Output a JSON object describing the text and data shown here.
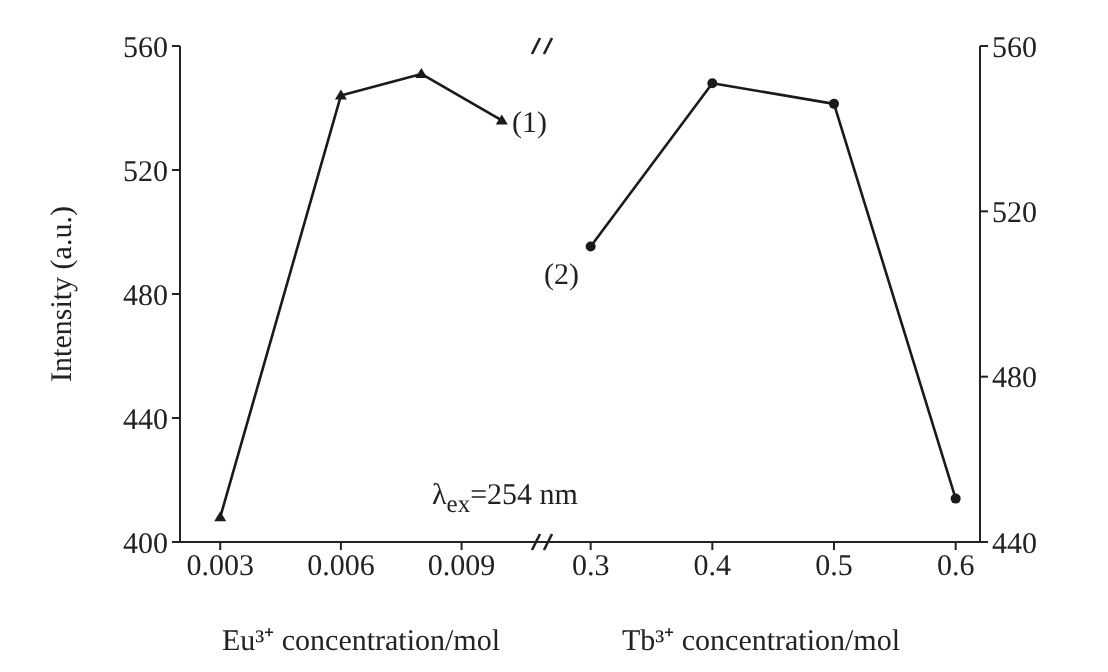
{
  "chart_data": [
    {
      "type": "line",
      "xlabel": "Eu³⁺ concentration/mol",
      "ylabel": "Intensity (a.u.)",
      "x": [
        0.003,
        0.006,
        0.008,
        0.01
      ],
      "xlim": [
        0.002,
        0.011
      ],
      "xticks": [
        0.003,
        0.006,
        0.009
      ],
      "ylim": [
        400,
        560
      ],
      "yticks": [
        400,
        440,
        480,
        520,
        560
      ],
      "marker": "triangle",
      "series": [
        {
          "color": "#1a1a1a",
          "values": [
            408,
            544,
            551,
            536
          ]
        }
      ],
      "annotations": [
        "(1)",
        "λ$_{ex}$=254 nm"
      ]
    },
    {
      "type": "line",
      "xlabel": "Tb³⁺ concentration/mol",
      "x": [
        0.3,
        0.4,
        0.5,
        0.6
      ],
      "xlim": [
        0.26,
        0.62
      ],
      "xticks": [
        0.3,
        0.4,
        0.5,
        0.6
      ],
      "y2lim": [
        440,
        560
      ],
      "y2ticks": [
        440,
        480,
        520,
        560
      ],
      "marker": "circle",
      "series": [
        {
          "color": "#1a1a1a",
          "axis": "y2",
          "values": [
            511.5,
            551,
            546,
            450.5
          ]
        }
      ],
      "annotations": [
        "(2)"
      ]
    }
  ]
}
